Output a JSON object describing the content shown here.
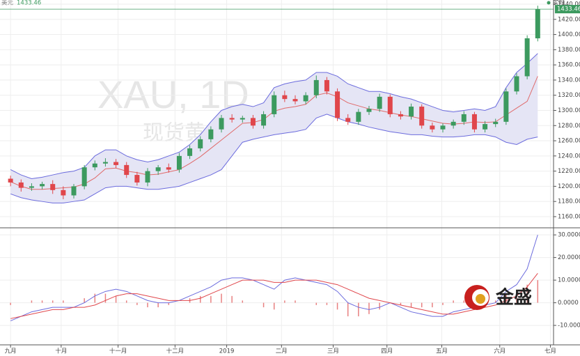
{
  "logo": "金盛",
  "chart_data": [
    {
      "type": "candlestick",
      "currency": "美元",
      "status": "实时",
      "watermark": "XAU, 1D",
      "watermark_sub": "现货黄金",
      "last_price": 1433.46,
      "last_price_color": "#3c9a5f",
      "up_color": "#3c9a5f",
      "down_color": "#e0464b",
      "band_line_color": "#6b6bdd",
      "band_mid_color": "#e06a6a",
      "band_fill": "#e5e5f5",
      "open": [
        1210,
        1205,
        1198,
        1200,
        1203,
        1195,
        1188,
        1200,
        1225,
        1230,
        1232,
        1228,
        1215,
        1205,
        1220,
        1225,
        1222,
        1240,
        1250,
        1262,
        1275,
        1290,
        1288,
        1290,
        1280,
        1295,
        1320,
        1315,
        1312,
        1320,
        1340,
        1325,
        1290,
        1285,
        1298,
        1302,
        1318,
        1295,
        1292,
        1305,
        1280,
        1275,
        1280,
        1285,
        1295,
        1275,
        1282,
        1285,
        1325,
        1345,
        1395
      ],
      "high": [
        1214,
        1209,
        1204,
        1206,
        1208,
        1200,
        1203,
        1228,
        1234,
        1237,
        1236,
        1232,
        1219,
        1224,
        1228,
        1230,
        1244,
        1254,
        1266,
        1279,
        1294,
        1295,
        1293,
        1294,
        1299,
        1325,
        1326,
        1320,
        1324,
        1346,
        1344,
        1329,
        1295,
        1302,
        1306,
        1322,
        1321,
        1299,
        1309,
        1308,
        1284,
        1283,
        1288,
        1299,
        1298,
        1286,
        1289,
        1329,
        1349,
        1399,
        1438
      ],
      "low": [
        1200,
        1193,
        1194,
        1196,
        1190,
        1183,
        1184,
        1196,
        1221,
        1226,
        1224,
        1211,
        1201,
        1200,
        1215,
        1218,
        1218,
        1236,
        1246,
        1258,
        1271,
        1284,
        1284,
        1276,
        1276,
        1291,
        1311,
        1308,
        1308,
        1316,
        1321,
        1286,
        1281,
        1281,
        1294,
        1298,
        1291,
        1288,
        1288,
        1276,
        1271,
        1271,
        1276,
        1281,
        1271,
        1271,
        1278,
        1281,
        1321,
        1341,
        1391
      ],
      "close": [
        1205,
        1198,
        1200,
        1203,
        1195,
        1188,
        1200,
        1225,
        1230,
        1232,
        1228,
        1215,
        1205,
        1220,
        1225,
        1222,
        1240,
        1250,
        1262,
        1275,
        1290,
        1288,
        1290,
        1280,
        1295,
        1320,
        1315,
        1312,
        1320,
        1340,
        1325,
        1290,
        1285,
        1298,
        1302,
        1318,
        1295,
        1292,
        1305,
        1280,
        1275,
        1280,
        1285,
        1295,
        1275,
        1282,
        1285,
        1325,
        1345,
        1395,
        1433.46
      ],
      "bb_upper": [
        1222,
        1215,
        1210,
        1212,
        1215,
        1218,
        1220,
        1225,
        1240,
        1248,
        1248,
        1240,
        1235,
        1232,
        1235,
        1240,
        1245,
        1255,
        1268,
        1285,
        1300,
        1305,
        1308,
        1305,
        1310,
        1330,
        1335,
        1338,
        1340,
        1350,
        1350,
        1345,
        1335,
        1330,
        1325,
        1325,
        1322,
        1318,
        1315,
        1310,
        1305,
        1300,
        1298,
        1300,
        1302,
        1300,
        1305,
        1330,
        1350,
        1362,
        1375
      ],
      "bb_mid": [
        1206,
        1200,
        1196,
        1196,
        1197,
        1198,
        1199,
        1203,
        1211,
        1223,
        1224,
        1220,
        1218,
        1215,
        1216,
        1219,
        1222,
        1230,
        1239,
        1250,
        1261,
        1272,
        1283,
        1284,
        1288,
        1299,
        1303,
        1305,
        1308,
        1320,
        1323,
        1318,
        1310,
        1306,
        1302,
        1300,
        1297,
        1294,
        1292,
        1289,
        1286,
        1283,
        1282,
        1283,
        1285,
        1284,
        1285,
        1294,
        1303,
        1312,
        1345
      ],
      "bb_lower": [
        1190,
        1185,
        1182,
        1180,
        1178,
        1178,
        1180,
        1182,
        1190,
        1198,
        1200,
        1200,
        1198,
        1196,
        1196,
        1198,
        1200,
        1205,
        1210,
        1215,
        1222,
        1240,
        1258,
        1262,
        1265,
        1268,
        1270,
        1272,
        1275,
        1290,
        1295,
        1290,
        1285,
        1282,
        1278,
        1275,
        1272,
        1270,
        1268,
        1268,
        1266,
        1265,
        1265,
        1266,
        1268,
        1268,
        1265,
        1258,
        1255,
        1262,
        1265
      ],
      "ylim": [
        1146.2,
        1445.5
      ],
      "yticks": [
        {
          "value": 1160,
          "label": "1160.00"
        },
        {
          "value": 1180,
          "label": "1180.00"
        },
        {
          "value": 1200,
          "label": "1200.00"
        },
        {
          "value": 1220,
          "label": "1220.00"
        },
        {
          "value": 1240,
          "label": "1240.00"
        },
        {
          "value": 1260,
          "label": "1260.00"
        },
        {
          "value": 1280,
          "label": "1280.00"
        },
        {
          "value": 1300,
          "label": "1300.00"
        },
        {
          "value": 1320,
          "label": "1320.00"
        },
        {
          "value": 1340,
          "label": "1340.00"
        },
        {
          "value": 1360,
          "label": "1360.00"
        },
        {
          "value": 1380,
          "label": "1380.00"
        },
        {
          "value": 1400,
          "label": "1400.00"
        },
        {
          "value": 1420,
          "label": "1420.00"
        },
        {
          "value": 1440,
          "label": "1440.00"
        }
      ],
      "xlim": [
        -1,
        51.5
      ],
      "xticks": [
        {
          "value": 0,
          "label": "九月"
        },
        {
          "value": 4.8,
          "label": "十月"
        },
        {
          "value": 10.2,
          "label": "十一月"
        },
        {
          "value": 15.6,
          "label": "十二月"
        },
        {
          "value": 20.5,
          "label": "2019"
        },
        {
          "value": 25.7,
          "label": "二月"
        },
        {
          "value": 30.6,
          "label": "三月"
        },
        {
          "value": 35.7,
          "label": "四月"
        },
        {
          "value": 40.9,
          "label": "五月"
        },
        {
          "value": 46.4,
          "label": "六月"
        },
        {
          "value": 51.2,
          "label": "七月"
        }
      ],
      "grid": true
    },
    {
      "type": "macd",
      "dif_color": "#6b6bdd",
      "dea_color": "#e0464b",
      "hist_color": "#e88080",
      "dif": [
        -8,
        -6,
        -4,
        -3,
        -2,
        -2,
        -2,
        0,
        3,
        5,
        6,
        5,
        3,
        1,
        0,
        0,
        1,
        3,
        5,
        7,
        10,
        11,
        11,
        10,
        8,
        6,
        10,
        11,
        10,
        9,
        8,
        5,
        0,
        -2,
        -3,
        -2,
        0,
        -2,
        -4,
        -5,
        -6,
        -6,
        -4,
        -3,
        -2,
        -1,
        0,
        5,
        8,
        15,
        30
      ],
      "dea": [
        -7,
        -6,
        -5,
        -4,
        -3,
        -3,
        -2,
        -2,
        -1,
        1,
        3,
        4,
        4,
        3,
        2,
        1,
        1,
        1,
        2,
        4,
        6,
        8,
        10,
        10,
        10,
        9,
        9,
        10,
        10,
        10,
        9,
        8,
        6,
        4,
        2,
        1,
        0,
        -1,
        -2,
        -3,
        -4,
        -5,
        -5,
        -4,
        -3,
        -2,
        -1,
        1,
        3,
        7,
        13
      ],
      "histogram": [
        -1,
        0,
        1,
        1,
        1,
        1,
        0,
        2,
        4,
        4,
        3,
        1,
        -1,
        -2,
        -2,
        -1,
        0,
        2,
        3,
        3,
        4,
        3,
        1,
        0,
        -2,
        -3,
        1,
        1,
        0,
        -1,
        -1,
        -3,
        -6,
        -6,
        -5,
        -3,
        0,
        -1,
        -2,
        -2,
        -2,
        -1,
        1,
        1,
        1,
        1,
        1,
        4,
        5,
        8,
        10
      ],
      "ylim": [
        -18.6,
        32.2
      ],
      "yticks": [
        {
          "value": 30,
          "label": "30.0000"
        },
        {
          "value": 20,
          "label": "20.0000"
        },
        {
          "value": 10,
          "label": "10.0000"
        },
        {
          "value": 0,
          "label": "0.0000"
        },
        {
          "value": -10,
          "label": "-10.0000"
        }
      ]
    }
  ]
}
